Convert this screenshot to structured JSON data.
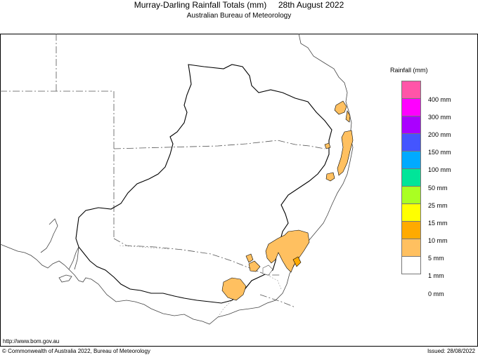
{
  "header": {
    "title": "Murray-Darling Rainfall Totals (mm)     28th August 2022",
    "subtitle": "Australian Bureau of Meteorology"
  },
  "legend": {
    "title": "Rainfall (mm)",
    "items": [
      {
        "label": "400 mm",
        "color": "#ff55a8"
      },
      {
        "label": "300 mm",
        "color": "#ff00ff"
      },
      {
        "label": "200 mm",
        "color": "#aa00ff"
      },
      {
        "label": "150 mm",
        "color": "#4455ff"
      },
      {
        "label": "100 mm",
        "color": "#00aaff"
      },
      {
        "label": "50 mm",
        "color": "#00e599"
      },
      {
        "label": "25 mm",
        "color": "#aaff22"
      },
      {
        "label": "15 mm",
        "color": "#ffff00"
      },
      {
        "label": "10 mm",
        "color": "#ffaa00"
      },
      {
        "label": "5 mm",
        "color": "#ffc060"
      },
      {
        "label": "1 mm",
        "color": "#ffffff"
      },
      {
        "label": "0 mm",
        "color": ""
      }
    ]
  },
  "footer": {
    "url": "http://www.bom.gov.au",
    "copyright": "© Commonwealth of Australia 2022, Bureau of Meteorology",
    "issued": "Issued: 28/08/2022"
  }
}
